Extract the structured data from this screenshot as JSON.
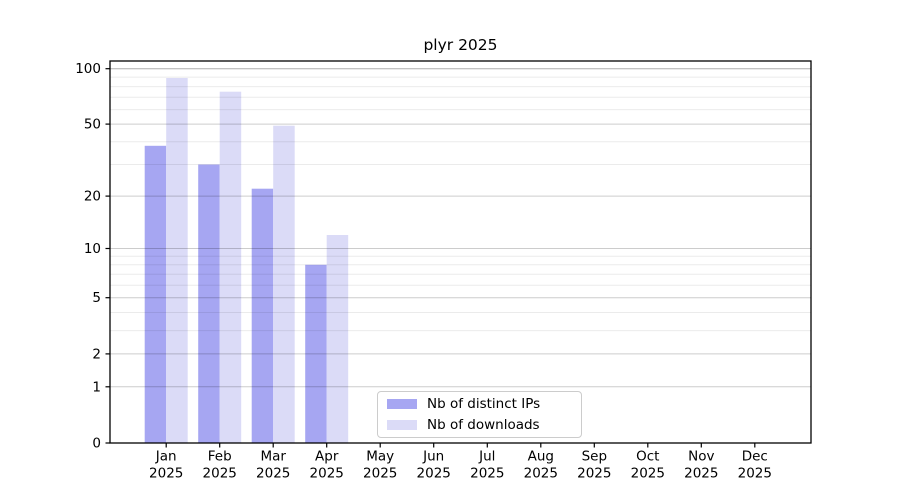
{
  "chart_data": {
    "type": "bar",
    "title": "plyr 2025",
    "scale": "log10(1+y)",
    "categories": [
      "Jan",
      "Feb",
      "Mar",
      "Apr",
      "May",
      "Jun",
      "Jul",
      "Aug",
      "Sep",
      "Oct",
      "Nov",
      "Dec"
    ],
    "tick_year": "2025",
    "series": [
      {
        "name": "Nb of distinct IPs",
        "color": "#a6a6f2",
        "values": [
          38,
          30,
          22,
          8,
          0,
          0,
          0,
          0,
          0,
          0,
          0,
          0
        ]
      },
      {
        "name": "Nb of downloads",
        "color": "#dbdbf7",
        "values": [
          89,
          75,
          49,
          12,
          0,
          0,
          0,
          0,
          0,
          0,
          0,
          0
        ]
      }
    ],
    "yticks": [
      0,
      1,
      2,
      5,
      10,
      20,
      50,
      100
    ],
    "minor_yticks": [
      3,
      4,
      6,
      7,
      8,
      9,
      30,
      40,
      60,
      70,
      80,
      90
    ],
    "ylim": [
      0,
      110
    ],
    "xlabel": "",
    "ylabel": "",
    "grid": true,
    "legend_position": "lower center"
  }
}
